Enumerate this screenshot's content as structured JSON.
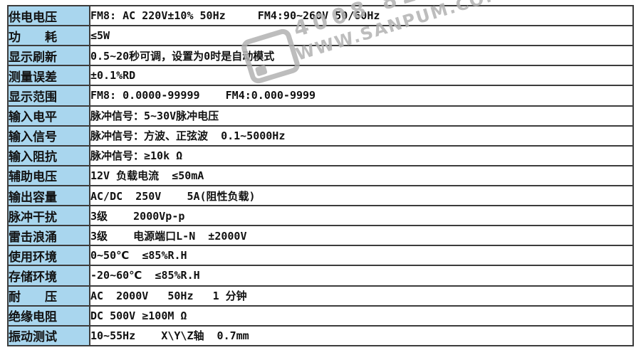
{
  "page": {
    "background": "#ffffff",
    "label_column_bg": "#a9d6ee",
    "grid_border_color": "#3c3c3c",
    "text_color": "#111111"
  },
  "table": {
    "rows": [
      {
        "label": "供电电压",
        "value": "FM8: AC 220V±10% 50Hz     FM4:90~260V 50/60Hz"
      },
      {
        "label": "功　　耗",
        "value": "≤5W"
      },
      {
        "label": "显示刷新",
        "value": "0.5~20秒可调，设置为0时是自动模式"
      },
      {
        "label": "测量误差",
        "value": "±0.1%RD"
      },
      {
        "label": "显示范围",
        "value": "FM8: 0.0000-99999    FM4:0.000-9999"
      },
      {
        "label": "输入电平",
        "value": "脉冲信号：5~30V脉冲电压"
      },
      {
        "label": "输入信号",
        "value": "脉冲信号：方波、正弦波  0.1~5000Hz"
      },
      {
        "label": "输入阻抗",
        "value": "脉冲信号：≥10k Ω"
      },
      {
        "label": "辅助电压",
        "value": "12V 负载电流  ≤50mA"
      },
      {
        "label": "输出容量",
        "value": "AC/DC  250V    5A(阻性负载)"
      },
      {
        "label": "脉冲干扰",
        "value": "3级    2000Vp-p"
      },
      {
        "label": "雷击浪涌",
        "value": "3级    电源端口L-N  ±2000V"
      },
      {
        "label": "使用环境",
        "value": "0~50℃  ≤85%R.H"
      },
      {
        "label": "存储环境",
        "value": "-20~60℃  ≤85%R.H"
      },
      {
        "label": "耐　　压",
        "value": "AC  2000V   50Hz   1 分钟"
      },
      {
        "label": "绝缘电阻",
        "value": "DC 500V ≥100M Ω"
      },
      {
        "label": "振动测试",
        "value": "10~55Hz    X\\Y\\Z轴  0.7mm"
      }
    ]
  },
  "watermark": {
    "phone": "4008 824 82",
    "website": "WWW.SANPUM.COM",
    "color": "#b2b2b2"
  }
}
